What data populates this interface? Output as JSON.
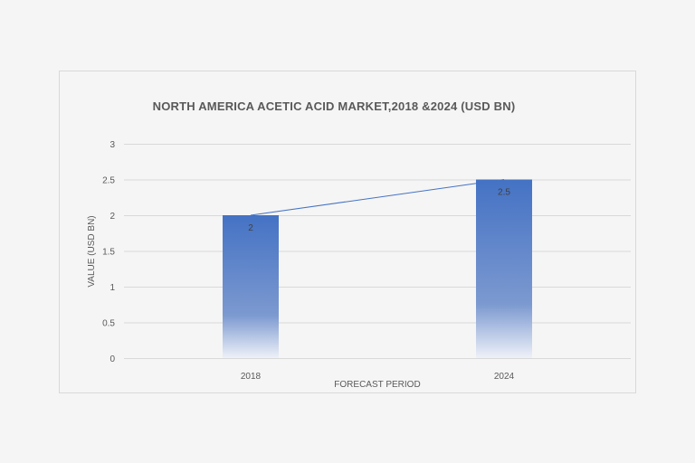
{
  "chart_data": {
    "type": "bar",
    "title": "NORTH AMERICA ACETIC ACID MARKET,2018 &2024 (USD BN)",
    "xlabel": "FORECAST PERIOD",
    "ylabel": "VALUE (USD BN)",
    "categories": [
      "2018",
      "2024"
    ],
    "values": [
      2,
      2.5
    ],
    "data_labels": [
      "2",
      "2.5"
    ],
    "ylim": [
      0,
      3
    ],
    "yticks": [
      "0",
      "0.5",
      "1",
      "1.5",
      "2",
      "2.5",
      "3"
    ],
    "grid": true,
    "legend": "none",
    "trendline": true,
    "colors": {
      "bar": "#4472c4",
      "line": "#4472c4",
      "grid": "#d9d9d9",
      "border": "#d9d9d9"
    }
  }
}
